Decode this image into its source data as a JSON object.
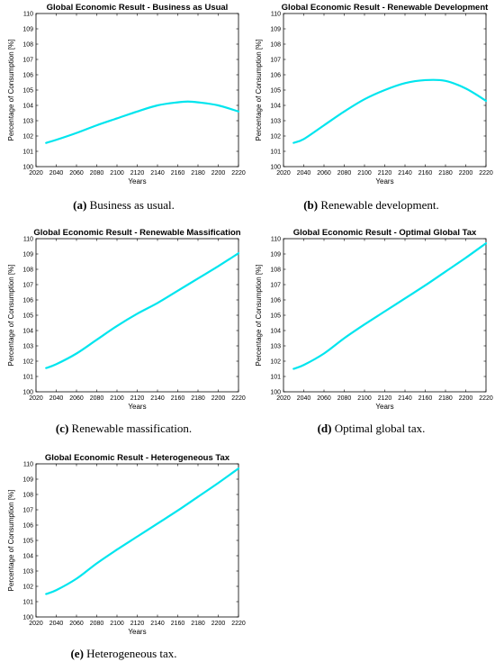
{
  "chart_data": [
    {
      "type": "line",
      "title": "Global Economic Result - Business as Usual",
      "xlabel": "Years",
      "ylabel": "Percentage of Consumption [%]",
      "xlim": [
        2020,
        2220
      ],
      "ylim": [
        100,
        110
      ],
      "xticks": [
        2020,
        2040,
        2060,
        2080,
        2100,
        2120,
        2140,
        2160,
        2180,
        2200,
        2220
      ],
      "yticks": [
        100,
        101,
        102,
        103,
        104,
        105,
        106,
        107,
        108,
        109,
        110
      ],
      "grid": false,
      "series": [
        {
          "color": "#00e5ee",
          "x": [
            2030,
            2040,
            2060,
            2080,
            2100,
            2120,
            2140,
            2160,
            2170,
            2180,
            2200,
            2220
          ],
          "y": [
            101.55,
            101.75,
            102.2,
            102.7,
            103.15,
            103.6,
            104.0,
            104.2,
            104.25,
            104.2,
            104.0,
            103.6
          ]
        }
      ]
    },
    {
      "type": "line",
      "title": "Global Economic Result - Renewable Development",
      "xlabel": "Years",
      "ylabel": "Percentage of Consumption [%]",
      "xlim": [
        2020,
        2220
      ],
      "ylim": [
        100,
        110
      ],
      "xticks": [
        2020,
        2040,
        2060,
        2080,
        2100,
        2120,
        2140,
        2160,
        2180,
        2200,
        2220
      ],
      "yticks": [
        100,
        101,
        102,
        103,
        104,
        105,
        106,
        107,
        108,
        109,
        110
      ],
      "grid": false,
      "series": [
        {
          "color": "#00e5ee",
          "x": [
            2030,
            2040,
            2060,
            2080,
            2100,
            2120,
            2140,
            2160,
            2180,
            2200,
            2220
          ],
          "y": [
            101.55,
            101.8,
            102.7,
            103.6,
            104.4,
            105.0,
            105.45,
            105.65,
            105.6,
            105.1,
            104.3
          ]
        }
      ]
    },
    {
      "type": "line",
      "title": "Global Economic Result - Renewable Massification",
      "xlabel": "Years",
      "ylabel": "Percentage of Consumption [%]",
      "xlim": [
        2020,
        2220
      ],
      "ylim": [
        100,
        110
      ],
      "xticks": [
        2020,
        2040,
        2060,
        2080,
        2100,
        2120,
        2140,
        2160,
        2180,
        2200,
        2220
      ],
      "yticks": [
        100,
        101,
        102,
        103,
        104,
        105,
        106,
        107,
        108,
        109,
        110
      ],
      "grid": false,
      "series": [
        {
          "color": "#00e5ee",
          "x": [
            2030,
            2040,
            2060,
            2080,
            2100,
            2120,
            2140,
            2160,
            2180,
            2200,
            2220
          ],
          "y": [
            101.55,
            101.8,
            102.5,
            103.4,
            104.3,
            105.1,
            105.8,
            106.6,
            107.4,
            108.2,
            109.05
          ]
        }
      ]
    },
    {
      "type": "line",
      "title": "Global Economic Result - Optimal Global Tax",
      "xlabel": "Years",
      "ylabel": "Percentage of Consumption [%]",
      "xlim": [
        2020,
        2220
      ],
      "ylim": [
        100,
        110
      ],
      "xticks": [
        2020,
        2040,
        2060,
        2080,
        2100,
        2120,
        2140,
        2160,
        2180,
        2200,
        2220
      ],
      "yticks": [
        100,
        101,
        102,
        103,
        104,
        105,
        106,
        107,
        108,
        109,
        110
      ],
      "grid": false,
      "series": [
        {
          "color": "#00e5ee",
          "x": [
            2030,
            2040,
            2060,
            2080,
            2100,
            2120,
            2140,
            2160,
            2180,
            2200,
            2220
          ],
          "y": [
            101.5,
            101.75,
            102.5,
            103.5,
            104.4,
            105.25,
            106.1,
            106.95,
            107.85,
            108.75,
            109.7
          ]
        }
      ]
    },
    {
      "type": "line",
      "title": "Global Economic Result - Heterogeneous Tax",
      "xlabel": "Years",
      "ylabel": "Percentage of Consumption [%]",
      "xlim": [
        2020,
        2220
      ],
      "ylim": [
        100,
        110
      ],
      "xticks": [
        2020,
        2040,
        2060,
        2080,
        2100,
        2120,
        2140,
        2160,
        2180,
        2200,
        2220
      ],
      "yticks": [
        100,
        101,
        102,
        103,
        104,
        105,
        106,
        107,
        108,
        109,
        110
      ],
      "grid": false,
      "series": [
        {
          "color": "#00e5ee",
          "x": [
            2030,
            2040,
            2060,
            2080,
            2100,
            2120,
            2140,
            2160,
            2180,
            2200,
            2220
          ],
          "y": [
            101.5,
            101.75,
            102.5,
            103.5,
            104.4,
            105.25,
            106.1,
            106.95,
            107.85,
            108.75,
            109.7
          ]
        }
      ]
    }
  ],
  "captions": [
    {
      "label": "(a)",
      "text": " Business as usual."
    },
    {
      "label": "(b)",
      "text": " Renewable development."
    },
    {
      "label": "(c)",
      "text": " Renewable massification."
    },
    {
      "label": "(d)",
      "text": " Optimal global tax."
    },
    {
      "label": "(e)",
      "text": " Heterogeneous tax."
    }
  ]
}
